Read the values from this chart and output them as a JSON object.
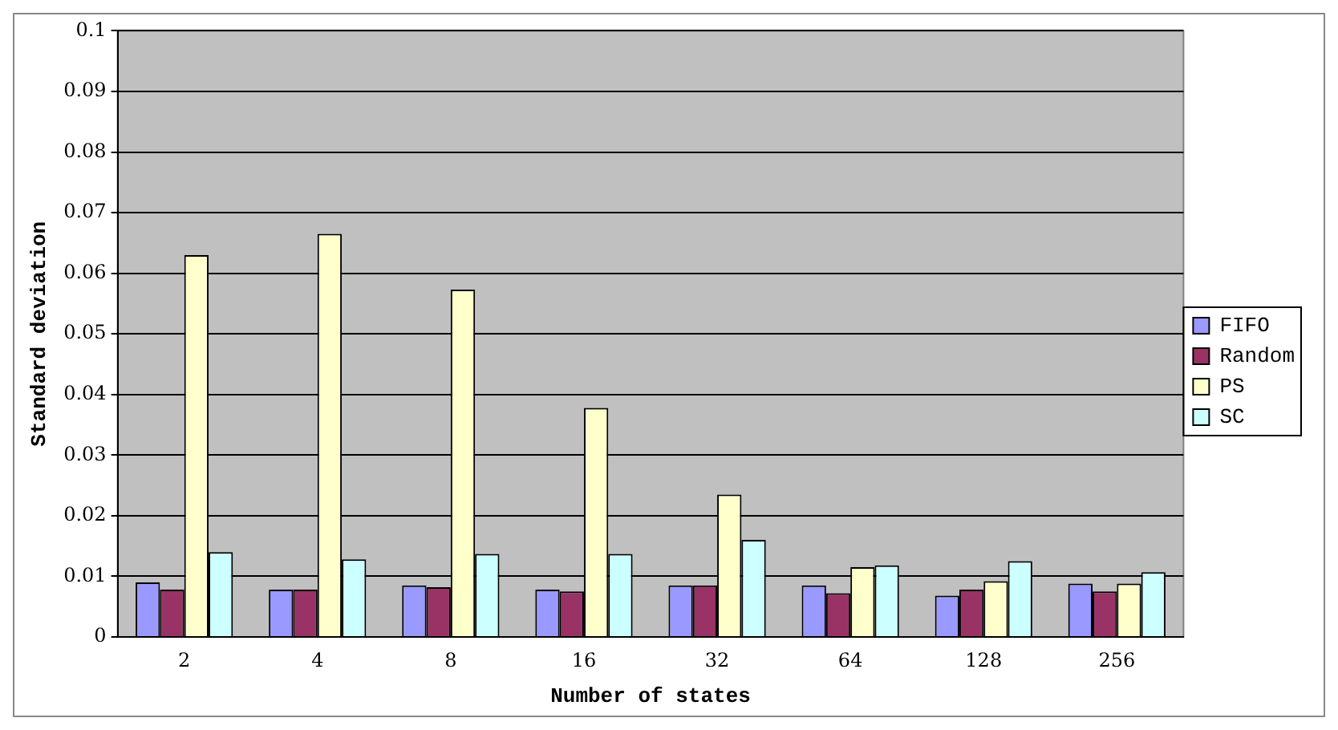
{
  "chart_data": {
    "type": "bar",
    "xlabel": "Number of states",
    "ylabel": "Standard deviation",
    "categories": [
      "2",
      "4",
      "8",
      "16",
      "32",
      "64",
      "128",
      "256"
    ],
    "series": [
      {
        "name": "FIFO",
        "color": "#9999ff",
        "values": [
          0.009,
          0.0078,
          0.0085,
          0.0078,
          0.0085,
          0.0085,
          0.0068,
          0.0088
        ]
      },
      {
        "name": "Random",
        "color": "#993366",
        "values": [
          0.0078,
          0.0078,
          0.0082,
          0.0075,
          0.0085,
          0.0072,
          0.0078,
          0.0075
        ]
      },
      {
        "name": "PS",
        "color": "#ffffcc",
        "values": [
          0.063,
          0.0665,
          0.0573,
          0.0378,
          0.0235,
          0.0115,
          0.0092,
          0.0088
        ]
      },
      {
        "name": "SC",
        "color": "#ccffff",
        "values": [
          0.014,
          0.0128,
          0.0137,
          0.0137,
          0.016,
          0.0118,
          0.0125,
          0.0107
        ]
      }
    ],
    "ylim": [
      0,
      0.1
    ],
    "yticks": [
      0,
      0.01,
      0.02,
      0.03,
      0.04,
      0.05,
      0.06,
      0.07,
      0.08,
      0.09,
      0.1
    ],
    "grid": "y",
    "legend": "right"
  }
}
